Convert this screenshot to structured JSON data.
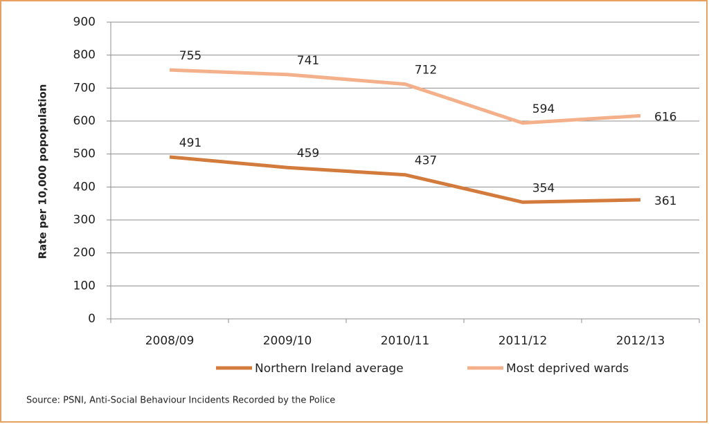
{
  "chart_data": {
    "type": "line",
    "ylabel": "Rate per 10,000 popopulation",
    "source": "Source: PSNI, Anti-Social Behaviour Incidents Recorded by the Police",
    "categories": [
      "2008/09",
      "2009/10",
      "2010/11",
      "2011/12",
      "2012/13"
    ],
    "series": [
      {
        "name": "Northern Ireland average",
        "color": "#d27b3c",
        "values": [
          491,
          459,
          437,
          354,
          361
        ]
      },
      {
        "name": "Most deprived wards",
        "color": "#f4b08a",
        "values": [
          755,
          741,
          712,
          594,
          616
        ]
      }
    ],
    "ylim": [
      0,
      900
    ],
    "yticks": [
      0,
      100,
      200,
      300,
      400,
      500,
      600,
      700,
      800,
      900
    ],
    "grid": true
  }
}
